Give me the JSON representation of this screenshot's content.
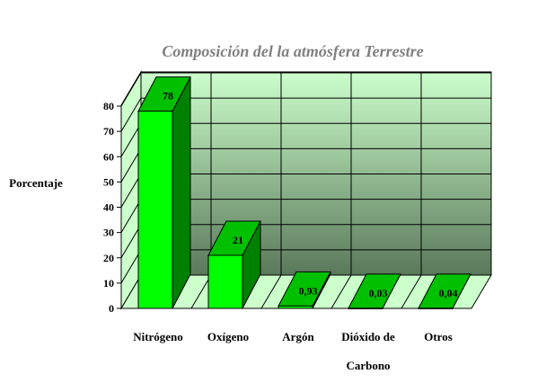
{
  "chart_data": {
    "type": "bar",
    "title": "Composición del la atmósfera Terrestre",
    "ylabel": "Porcentaje",
    "xlabel": "",
    "categories": [
      [
        "Nitrógeno"
      ],
      [
        "Oxígeno"
      ],
      [
        "Argón"
      ],
      [
        "Dióxido de",
        "Carbono"
      ],
      [
        "Otros"
      ]
    ],
    "values": [
      78,
      21,
      0.93,
      0.03,
      0.04
    ],
    "data_labels": [
      "78",
      "21",
      "0,93",
      "0,03",
      "0,04"
    ],
    "ylim": [
      0,
      80
    ],
    "yticks": [
      0,
      10,
      20,
      30,
      40,
      50,
      60,
      70,
      80
    ],
    "grid": true,
    "three_d": true,
    "legend": "none",
    "colors": {
      "bar_front": "#00ff00",
      "bar_side": "#008000",
      "bar_top": "#00c000",
      "wall_top": "#ccffcc",
      "wall_bottom": "#5a785a",
      "floor": "#ccffcc",
      "title": "#808080"
    }
  }
}
